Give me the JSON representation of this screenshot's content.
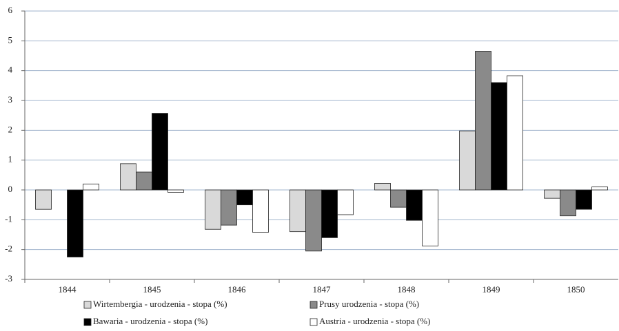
{
  "chart_data": {
    "type": "bar",
    "categories": [
      "1844",
      "1845",
      "1846",
      "1847",
      "1848",
      "1849",
      "1850"
    ],
    "series": [
      {
        "name": "Wirtembergia - urodzenia - stopa (%)",
        "color": "#d9d9d9",
        "values": [
          -0.65,
          0.88,
          -1.32,
          -1.4,
          0.22,
          1.98,
          -0.28
        ]
      },
      {
        "name": "Prusy urodzenia - stopa (%)",
        "color": "#8a8a8a",
        "values": [
          null,
          0.6,
          -1.18,
          -2.05,
          -0.58,
          4.65,
          -0.87
        ]
      },
      {
        "name": "Bawaria - urodzenia - stopa (%)",
        "color": "#000000",
        "values": [
          -2.25,
          2.57,
          -0.5,
          -1.6,
          -1.02,
          3.6,
          -0.65
        ]
      },
      {
        "name": "Austria - urodzenia - stopa (%)",
        "color": "#ffffff",
        "values": [
          0.2,
          -0.08,
          -1.42,
          -0.83,
          -1.88,
          3.83,
          0.1
        ]
      }
    ],
    "ylim": [
      -3,
      6
    ],
    "yticks": [
      -3,
      -2,
      -1,
      0,
      1,
      2,
      3,
      4,
      5,
      6
    ],
    "grid": true
  }
}
